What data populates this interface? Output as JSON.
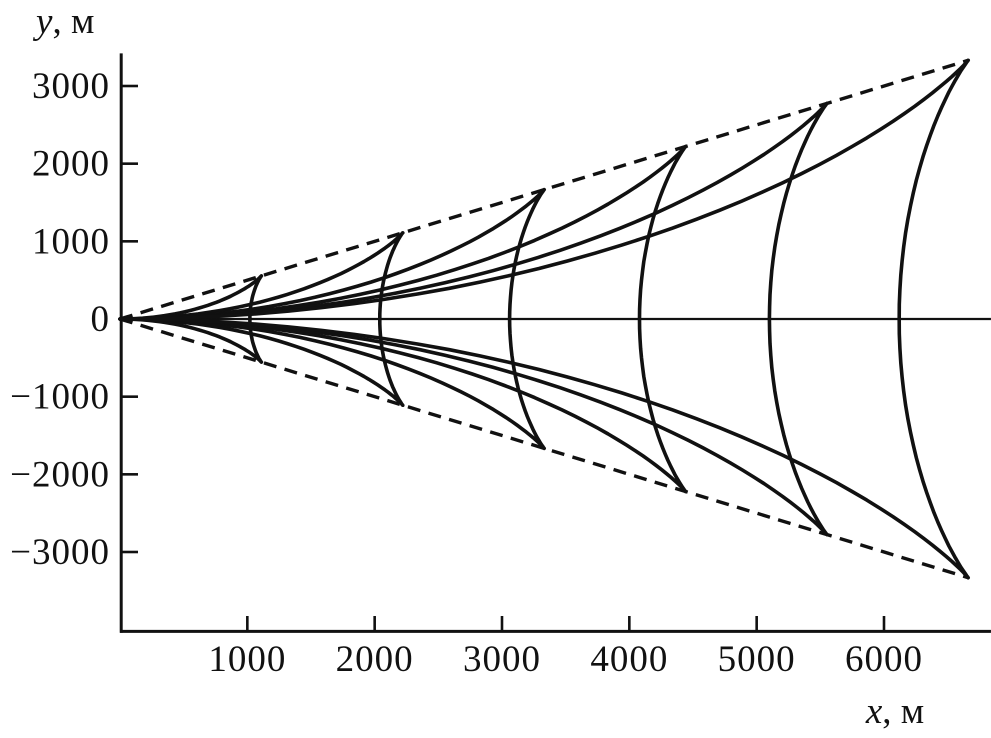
{
  "figure": {
    "background": "#ffffff",
    "ink": "#111111"
  },
  "chart_data": {
    "type": "line",
    "title": "",
    "xlabel": "x, м",
    "ylabel": "y, м",
    "xlabel_var": "x",
    "xlabel_unit": ", м",
    "ylabel_var": "y",
    "ylabel_unit": ", м",
    "x_ticks": [
      1000,
      2000,
      3000,
      4000,
      5000,
      6000
    ],
    "y_ticks": [
      3000,
      2000,
      1000,
      0,
      -1000,
      -2000,
      -3000
    ],
    "xlim": [
      0,
      6840
    ],
    "ylim": [
      -4040,
      3420
    ],
    "grid": false,
    "zero_line": true,
    "legend": null,
    "wedge": {
      "style": "dashed",
      "apex": [
        0,
        0
      ],
      "x_end": 6662,
      "upper_y_end": 3331,
      "lower_y_end": -3331,
      "slope": 0.5,
      "half_angle_deg": 26.6
    },
    "fronts": [
      {
        "a": 1020,
        "axis_crossing_x": 1020,
        "cusp_x": 1110,
        "cusp_y": 555
      },
      {
        "a": 2040,
        "axis_crossing_x": 2040,
        "cusp_x": 2221,
        "cusp_y": 1110
      },
      {
        "a": 3060,
        "axis_crossing_x": 3060,
        "cusp_x": 3331,
        "cusp_y": 1665
      },
      {
        "a": 4080,
        "axis_crossing_x": 4080,
        "cusp_x": 4441,
        "cusp_y": 2221
      },
      {
        "a": 5100,
        "axis_crossing_x": 5100,
        "cusp_x": 5552,
        "cusp_y": 2776
      },
      {
        "a": 6119,
        "axis_crossing_x": 6119,
        "cusp_x": 6662,
        "cusp_y": 3331
      }
    ],
    "curve_model": "wake crest: X=a·cosθ·(1+sin²θ), Y=2√2·slope·a·sinθ·cos²θ, θ∈[−90°,90°]; cusps lie on dashed wedge"
  }
}
